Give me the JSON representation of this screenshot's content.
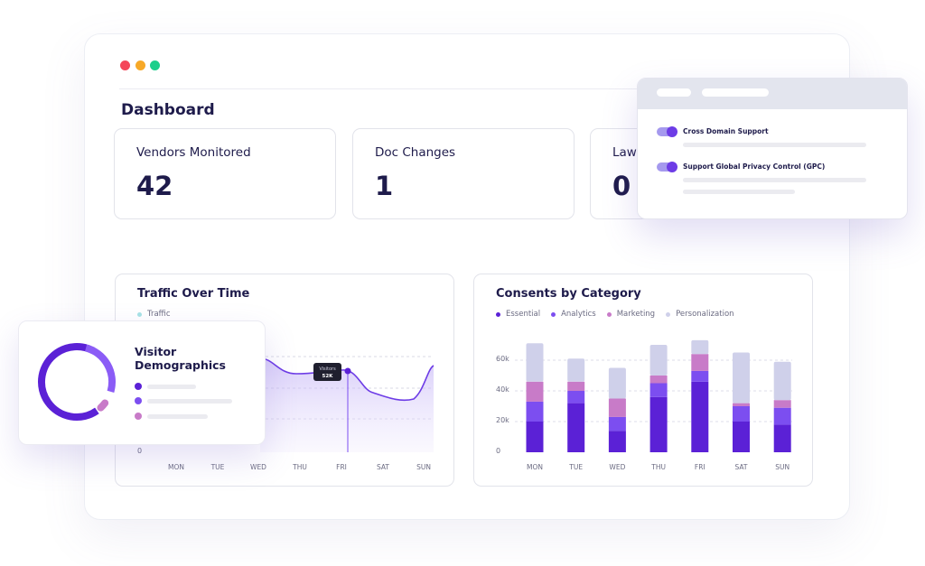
{
  "dashboard": {
    "title": "Dashboard",
    "stats": [
      {
        "label": "Vendors Monitored",
        "value": "42"
      },
      {
        "label": "Doc Changes",
        "value": "1"
      },
      {
        "label": "Laws",
        "value": "0"
      }
    ]
  },
  "colors": {
    "essential": "#5b21d6",
    "analytics": "#7c4ef0",
    "marketing": "#c87bc8",
    "personalization": "#cfd0ea",
    "traffic_line": "#6d3ce6",
    "traffic_legend": "#a7e3e6",
    "window_red": "#f4465a",
    "window_yellow": "#f7a928",
    "window_green": "#1ccf8b"
  },
  "traffic": {
    "title": "Traffic Over Time",
    "legend": "Traffic",
    "y_ticks": [
      "0"
    ],
    "x_labels": [
      "MON",
      "TUE",
      "WED",
      "THU",
      "FRI",
      "SAT",
      "SUN"
    ],
    "tooltip": {
      "label": "Visitors",
      "value": "52K"
    }
  },
  "consents": {
    "title": "Consents by Category",
    "legend": [
      "Essential",
      "Analytics",
      "Marketing",
      "Personalization"
    ],
    "y_ticks": [
      "60k",
      "40k",
      "20k",
      "0"
    ]
  },
  "chart_data": [
    {
      "type": "area",
      "title": "Traffic Over Time",
      "x": [
        "MON",
        "TUE",
        "WED",
        "THU",
        "FRI",
        "SAT",
        "SUN"
      ],
      "series": [
        {
          "name": "Traffic",
          "values": [
            null,
            null,
            62,
            55,
            52,
            40,
            58
          ]
        }
      ],
      "annotations": [
        {
          "x": "FRI",
          "label": "Visitors",
          "value": "52K"
        }
      ],
      "ylabel": "",
      "grid": true,
      "legend": "top-left"
    },
    {
      "type": "bar",
      "stacked": true,
      "title": "Consents by Category",
      "categories": [
        "MON",
        "TUE",
        "WED",
        "THU",
        "FRI",
        "SAT",
        "SUN"
      ],
      "series": [
        {
          "name": "Essential",
          "values": [
            20,
            32,
            14,
            36,
            46,
            20,
            18
          ]
        },
        {
          "name": "Analytics",
          "values": [
            13,
            8,
            9,
            9,
            7,
            10,
            11
          ]
        },
        {
          "name": "Marketing",
          "values": [
            13,
            6,
            12,
            5,
            11,
            2,
            5
          ]
        },
        {
          "name": "Personalization",
          "values": [
            25,
            15,
            20,
            20,
            9,
            33,
            25
          ]
        }
      ],
      "ylim": [
        0,
        75
      ],
      "y_ticks": [
        0,
        20,
        40,
        60
      ],
      "grid": true,
      "legend": "top-left"
    }
  ],
  "demographics": {
    "title": "Visitor Demographics",
    "segments": [
      {
        "color": "#5b21d6"
      },
      {
        "color": "#7c4ef0"
      },
      {
        "color": "#c87bc8"
      }
    ]
  },
  "settings": {
    "toggles": [
      {
        "label": "Cross Domain Support",
        "on": true
      },
      {
        "label": "Support Global Privacy Control (GPC)",
        "on": true
      }
    ]
  }
}
